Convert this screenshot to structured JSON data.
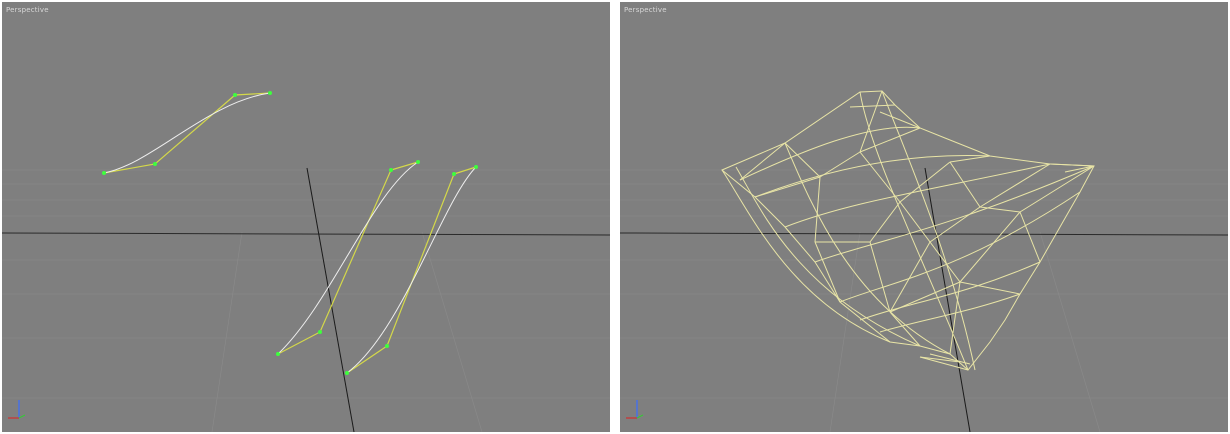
{
  "viewports": {
    "left": {
      "label": "Perspective",
      "content": "spline cross-sections with vertex handles"
    },
    "right": {
      "label": "Perspective",
      "content": "lofted wireframe surface"
    }
  },
  "colors": {
    "viewport_bg": "#7f7f7f",
    "grid": "#8a8a8a",
    "horizon": "#2a2a2a",
    "spline_yellow": "#d4d84a",
    "spline_white": "#e8e8e8",
    "vertex_green": "#3dff3d",
    "wire": "#e8e4a6",
    "axis_x": "#d23030",
    "axis_y": "#3a6dff"
  }
}
